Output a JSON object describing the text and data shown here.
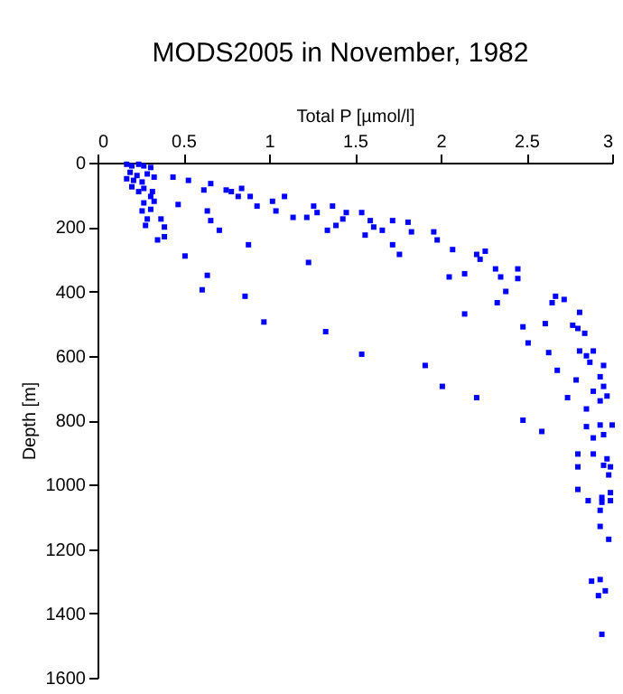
{
  "chart_data": {
    "type": "scatter",
    "title": "MODS2005 in November, 1982",
    "xlabel": "Total P [µmol/l]",
    "ylabel": "Depth [m]",
    "xlim": [
      0,
      3
    ],
    "xticks": [
      0,
      0.5,
      1,
      1.5,
      2,
      2.5,
      3
    ],
    "ylim": [
      1600,
      0
    ],
    "yticks": [
      0,
      200,
      400,
      600,
      800,
      1000,
      1200,
      1400,
      1600
    ],
    "grid": false,
    "marker": "square",
    "series": [
      {
        "color": "#0000ff",
        "x": [
          0.17,
          0.2,
          0.24,
          0.27,
          0.31,
          0.19,
          0.23,
          0.29,
          0.33,
          0.21,
          0.26,
          0.32,
          0.17,
          0.2,
          0.24,
          0.27,
          0.31,
          0.27,
          0.33,
          0.26,
          0.31,
          0.29,
          0.37,
          0.28,
          0.39,
          0.39,
          0.35,
          0.44,
          0.47,
          0.53,
          0.62,
          0.66,
          0.64,
          0.66,
          0.71,
          0.51,
          0.75,
          0.78,
          0.82,
          0.84,
          0.89,
          0.93,
          0.88,
          0.64,
          0.61,
          0.86,
          0.97,
          1.02,
          1.09,
          1.04,
          1.14,
          1.22,
          1.26,
          1.28,
          1.37,
          1.39,
          1.34,
          1.23,
          1.33,
          1.54,
          1.43,
          1.45,
          1.54,
          1.59,
          1.56,
          1.61,
          1.66,
          1.72,
          1.81,
          1.83,
          1.72,
          1.76,
          1.96,
          1.98,
          2.07,
          2.21,
          2.26,
          2.23,
          2.05,
          2.14,
          2.32,
          2.45,
          2.35,
          2.45,
          2.38,
          2.33,
          2.14,
          2.67,
          2.65,
          2.72,
          2.81,
          2.48,
          2.61,
          2.77,
          2.84,
          2.8,
          2.51,
          2.63,
          2.81,
          2.89,
          2.85,
          2.87,
          2.95,
          2.68,
          1.91,
          2.93,
          2.79,
          2.01,
          2.95,
          2.89,
          2.97,
          2.74,
          2.21,
          2.93,
          2.85,
          2.48,
          3.0,
          2.85,
          2.93,
          2.95,
          2.59,
          2.89,
          2.8,
          2.89,
          2.97,
          2.95,
          2.99,
          2.8,
          2.98,
          2.8,
          2.99,
          2.94,
          2.86,
          2.94,
          2.99,
          2.93,
          2.93,
          2.98,
          2.88,
          2.93,
          2.96,
          2.92,
          2.94
        ],
        "values": [
          5,
          10,
          5,
          10,
          15,
          30,
          40,
          35,
          45,
          55,
          60,
          90,
          50,
          75,
          90,
          80,
          105,
          125,
          120,
          150,
          145,
          175,
          175,
          195,
          200,
          230,
          240,
          45,
          130,
          55,
          85,
          65,
          150,
          180,
          210,
          290,
          85,
          90,
          105,
          80,
          105,
          135,
          255,
          350,
          395,
          415,
          495,
          120,
          105,
          150,
          170,
          170,
          135,
          155,
          135,
          195,
          210,
          310,
          525,
          595,
          175,
          155,
          155,
          180,
          225,
          200,
          210,
          180,
          185,
          215,
          255,
          285,
          215,
          240,
          270,
          285,
          275,
          300,
          355,
          345,
          330,
          330,
          355,
          360,
          400,
          435,
          470,
          415,
          435,
          425,
          465,
          510,
          500,
          505,
          530,
          515,
          560,
          590,
          585,
          585,
          600,
          620,
          630,
          645,
          630,
          665,
          675,
          695,
          695,
          710,
          725,
          730,
          730,
          740,
          765,
          800,
          815,
          820,
          815,
          845,
          835,
          855,
          905,
          905,
          920,
          940,
          945,
          945,
          970,
          1015,
          1025,
          1040,
          1050,
          1055,
          1050,
          1080,
          1130,
          1170,
          1300,
          1295,
          1330,
          1345,
          1465
        ]
      }
    ]
  }
}
